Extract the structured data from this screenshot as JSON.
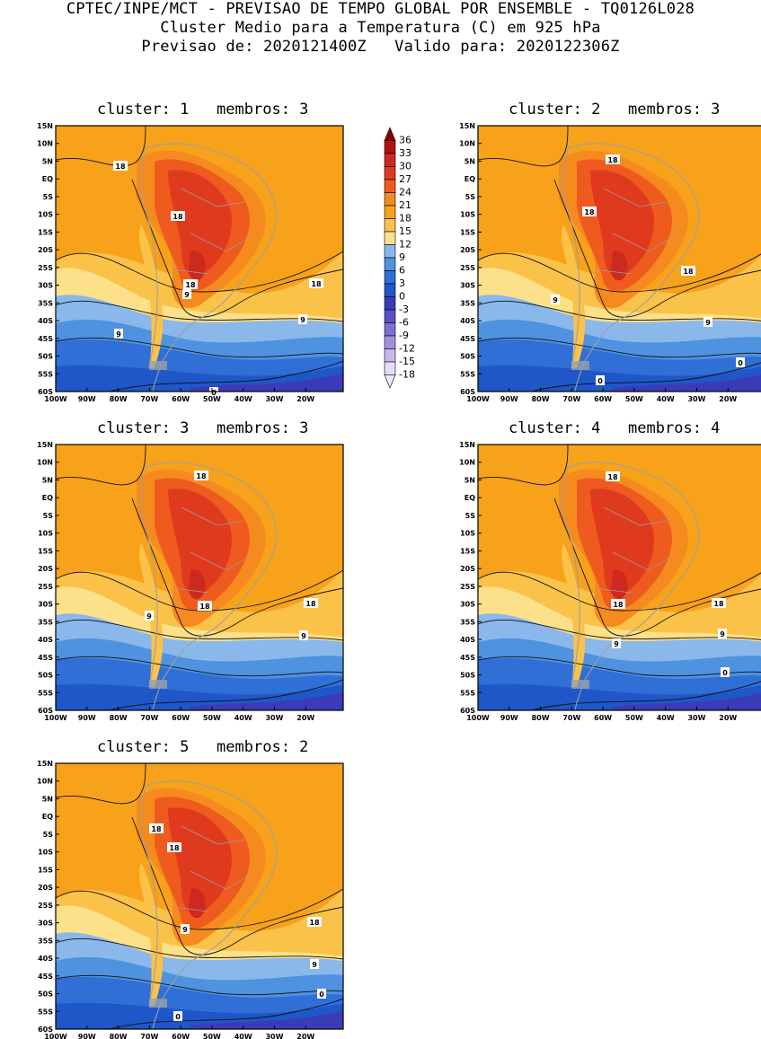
{
  "header": {
    "line1": "CPTEC/INPE/MCT - PREVISAO DE TEMPO GLOBAL POR ENSEMBLE - TQ0126L028",
    "line2": "Cluster Medio para a Temperatura (C) em 925 hPa",
    "line3": "Previsao de: 2020121400Z   Valido para: 2020122306Z"
  },
  "axes": {
    "lat_labels": [
      "15N",
      "10N",
      "5N",
      "EQ",
      "5S",
      "10S",
      "15S",
      "20S",
      "25S",
      "30S",
      "35S",
      "40S",
      "45S",
      "50S",
      "55S",
      "60S"
    ],
    "lon_labels": [
      "100W",
      "90W",
      "80W",
      "70W",
      "60W",
      "50W",
      "40W",
      "30W",
      "20W"
    ]
  },
  "colorbar": {
    "levels": [
      "36",
      "33",
      "30",
      "27",
      "24",
      "21",
      "18",
      "15",
      "12",
      "9",
      "6",
      "3",
      "0",
      "-3",
      "-6",
      "-9",
      "-12",
      "-15",
      "-18"
    ],
    "colors": [
      "#8b0000",
      "#b31010",
      "#cc2a1e",
      "#e03a1e",
      "#ef5a1e",
      "#f58a1e",
      "#f7a21a",
      "#fbc24a",
      "#fde08a",
      "#8ab8ea",
      "#4e92e0",
      "#2f6fd6",
      "#1f56c8",
      "#3b3bb8",
      "#5a4fc6",
      "#7a6fd4",
      "#a28fe0",
      "#c6b8ee",
      "#e4dcf6"
    ]
  },
  "panels": [
    {
      "title": "cluster: 1   membros: 3",
      "contour_labels": [
        "18",
        "18",
        "18",
        "18",
        "9",
        "9",
        "9",
        "0"
      ]
    },
    {
      "title": "cluster: 2   membros: 3",
      "contour_labels": [
        "18",
        "18",
        "18",
        "9",
        "9",
        "0",
        "0"
      ]
    },
    {
      "title": "cluster: 3   membros: 3",
      "contour_labels": [
        "18",
        "18",
        "18",
        "9",
        "9"
      ]
    },
    {
      "title": "cluster: 4   membros: 4",
      "contour_labels": [
        "18",
        "18",
        "18",
        "9",
        "9",
        "0"
      ]
    },
    {
      "title": "cluster: 5   membros: 2",
      "contour_labels": [
        "18",
        "18",
        "18",
        "9",
        "9",
        "0",
        "0"
      ]
    }
  ]
}
